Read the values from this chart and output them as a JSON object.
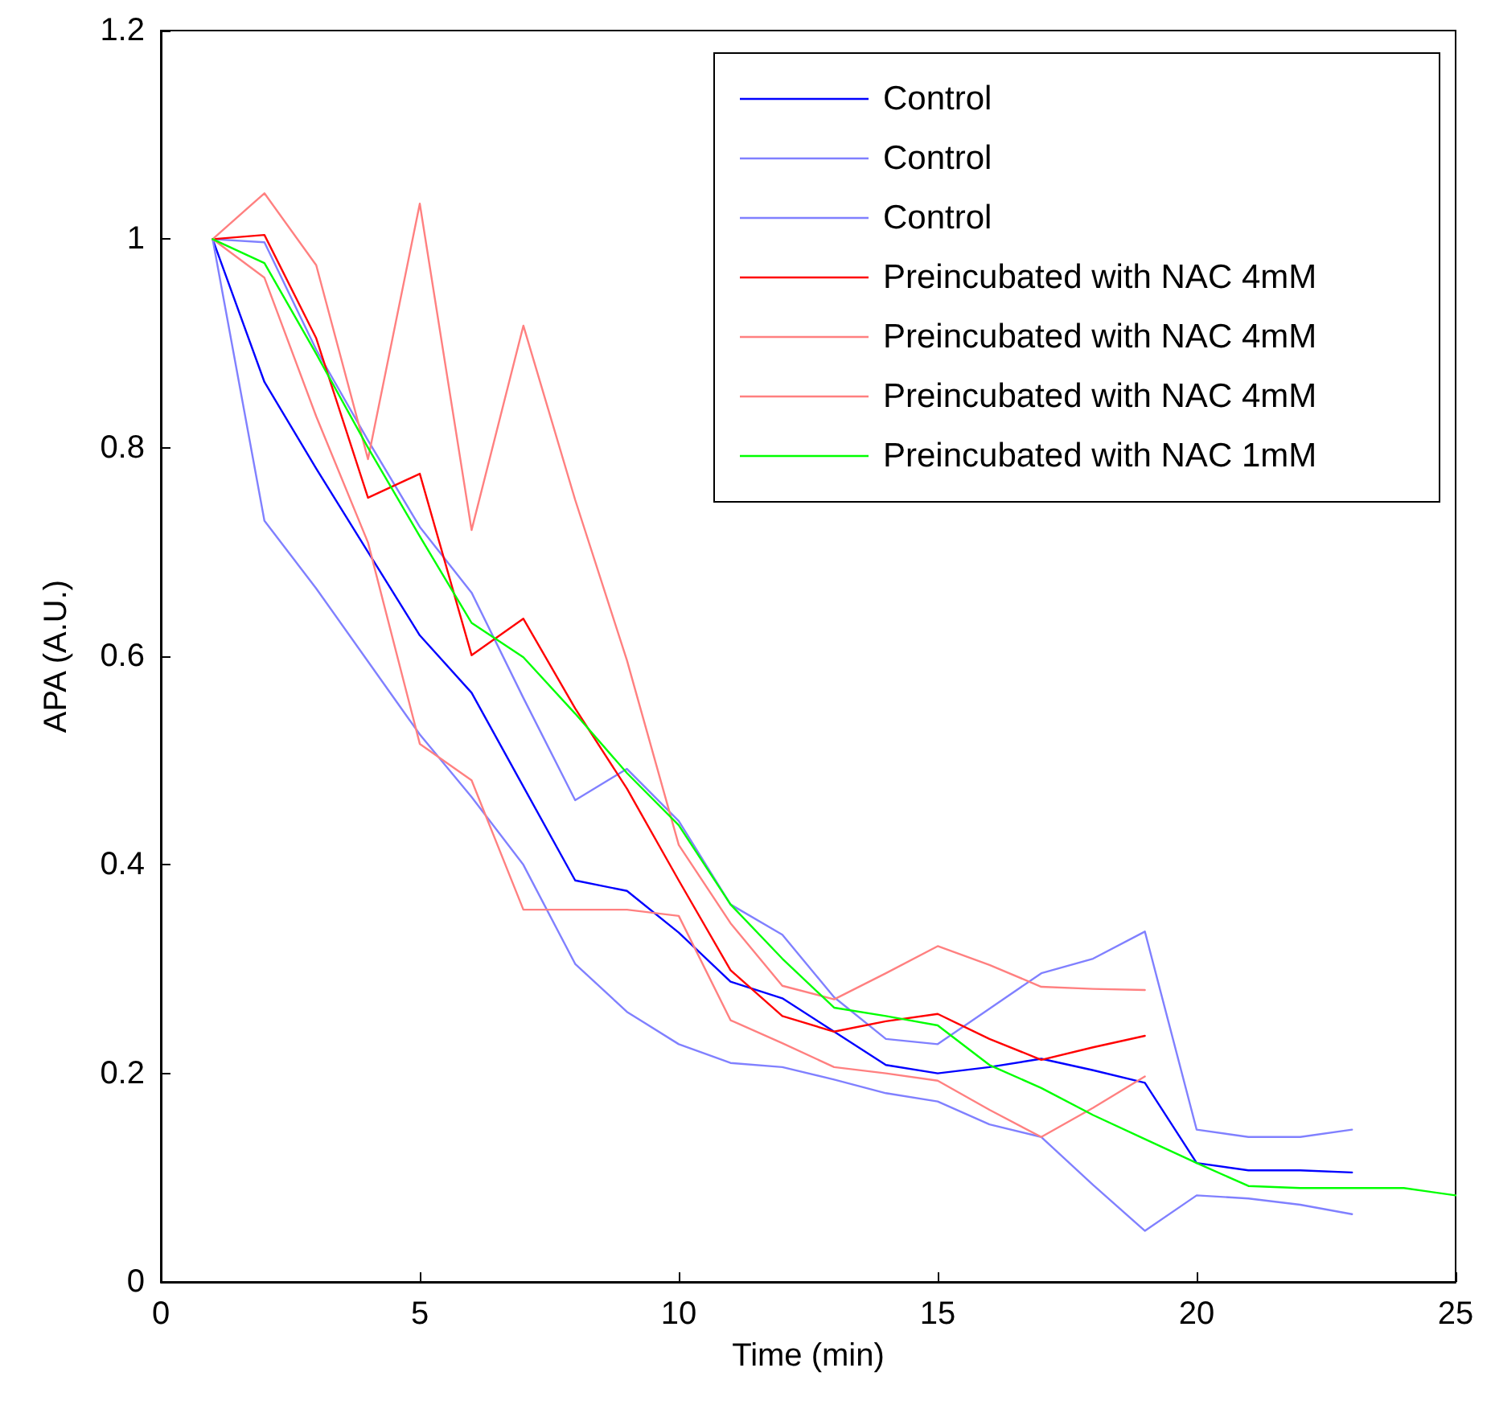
{
  "chart_data": {
    "type": "line",
    "xlabel": "Time (min)",
    "ylabel": "APA (A.U.)",
    "xlim": [
      0,
      25
    ],
    "xticks": [
      0,
      5,
      10,
      15,
      20,
      25
    ],
    "ylim": [
      0,
      1.2
    ],
    "yticks": [
      0,
      0.2,
      0.4,
      0.6,
      0.8,
      1,
      1.2
    ],
    "grid": false,
    "legend": "top right",
    "marker": "none",
    "line_style": "solid",
    "series": [
      {
        "name": "Control",
        "color": "#0000ff",
        "x": [
          1,
          2,
          3,
          4,
          5,
          6,
          7,
          8,
          9,
          10,
          11,
          12,
          13,
          14,
          15,
          16,
          17,
          18,
          19,
          20,
          21,
          22,
          23
        ],
        "values": [
          1,
          0.863,
          0.78,
          0.7,
          0.62,
          0.565,
          0.475,
          0.385,
          0.375,
          0.335,
          0.288,
          0.272,
          0.24,
          0.208,
          0.2,
          0.206,
          0.214,
          0.203,
          0.191,
          0.114,
          0.107,
          0.107,
          0.105
        ]
      },
      {
        "name": "Control",
        "color": "#8080ff",
        "x": [
          1,
          2,
          3,
          4,
          5,
          6,
          7,
          8,
          9,
          10,
          11,
          12,
          13,
          14,
          15,
          16,
          17,
          18,
          19,
          20,
          21,
          22,
          23
        ],
        "values": [
          1,
          0.997,
          0.894,
          0.807,
          0.724,
          0.661,
          0.56,
          0.462,
          0.492,
          0.442,
          0.362,
          0.333,
          0.273,
          0.233,
          0.228,
          0.262,
          0.296,
          0.31,
          0.336,
          0.146,
          0.139,
          0.139,
          0.146
        ]
      },
      {
        "name": "Control",
        "color": "#8080ff",
        "x": [
          1,
          2,
          3,
          4,
          5,
          6,
          7,
          8,
          9,
          10,
          11,
          12,
          13,
          14,
          15,
          16,
          17,
          18,
          19,
          20,
          21,
          22,
          23
        ],
        "values": [
          1,
          0.73,
          0.665,
          0.595,
          0.525,
          0.465,
          0.4,
          0.305,
          0.259,
          0.228,
          0.21,
          0.206,
          0.194,
          0.181,
          0.173,
          0.151,
          0.139,
          0.093,
          0.049,
          0.083,
          0.08,
          0.074,
          0.065
        ]
      },
      {
        "name": "Preincubated with NAC 4mM",
        "color": "#ff0000",
        "x": [
          1,
          2,
          3,
          4,
          5,
          6,
          7,
          8,
          9,
          10,
          11,
          12,
          13,
          14,
          15,
          16,
          17,
          18,
          19
        ],
        "values": [
          1,
          1.004,
          0.905,
          0.752,
          0.775,
          0.601,
          0.636,
          0.55,
          0.473,
          0.385,
          0.299,
          0.255,
          0.24,
          0.25,
          0.257,
          0.233,
          0.213,
          0.225,
          0.236
        ]
      },
      {
        "name": "Preincubated with NAC 4mM",
        "color": "#ff8080",
        "x": [
          1,
          2,
          3,
          4,
          5,
          6,
          7,
          8,
          9,
          10,
          11,
          12,
          13,
          14,
          15,
          16,
          17,
          18,
          19
        ],
        "values": [
          1,
          1.044,
          0.975,
          0.789,
          1.034,
          0.721,
          0.917,
          0.75,
          0.596,
          0.419,
          0.344,
          0.284,
          0.271,
          0.296,
          0.322,
          0.304,
          0.283,
          0.281,
          0.28
        ]
      },
      {
        "name": "Preincubated with NAC 4mM",
        "color": "#ff8080",
        "x": [
          1,
          2,
          3,
          4,
          5,
          6,
          7,
          8,
          9,
          10,
          11,
          12,
          13,
          14,
          15,
          16,
          17,
          18,
          19
        ],
        "values": [
          1,
          0.963,
          0.83,
          0.709,
          0.516,
          0.481,
          0.357,
          0.357,
          0.357,
          0.351,
          0.251,
          0.229,
          0.206,
          0.2,
          0.193,
          0.165,
          0.139,
          0.167,
          0.197
        ]
      },
      {
        "name": "Preincubated with NAC 1mM",
        "color": "#00ff00",
        "x": [
          1,
          2,
          3,
          4,
          5,
          6,
          7,
          8,
          9,
          10,
          11,
          12,
          13,
          14,
          15,
          16,
          17,
          18,
          19,
          20,
          21,
          22,
          23,
          24,
          25
        ],
        "values": [
          1,
          0.977,
          0.89,
          0.8,
          0.715,
          0.632,
          0.599,
          0.545,
          0.488,
          0.438,
          0.362,
          0.31,
          0.263,
          0.255,
          0.246,
          0.208,
          0.186,
          0.16,
          0.137,
          0.114,
          0.092,
          0.09,
          0.09,
          0.09,
          0.083
        ]
      }
    ]
  }
}
